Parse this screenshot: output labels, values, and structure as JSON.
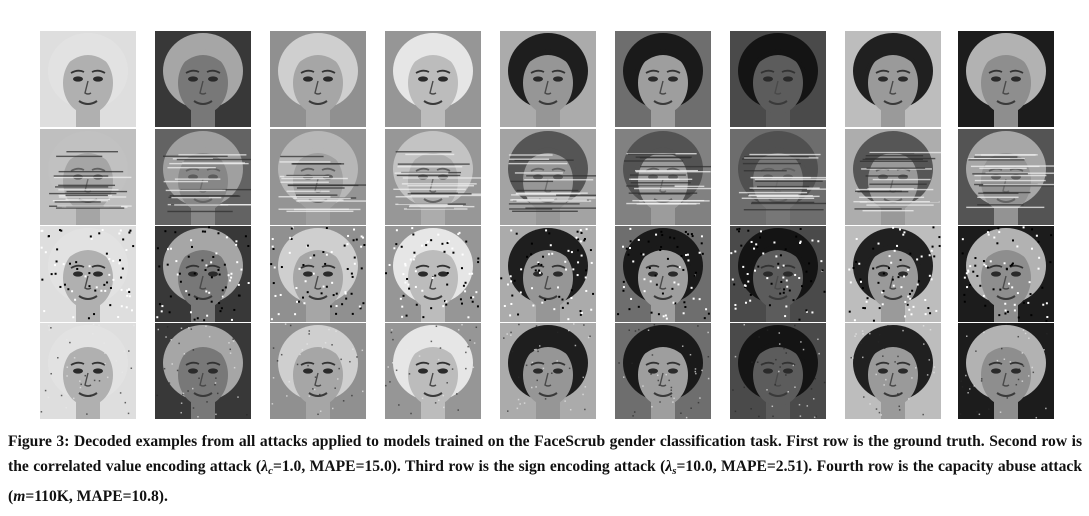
{
  "figure": {
    "caption": {
      "label": "Figure 3:",
      "seg1": " Decoded examples from all attacks applied to models trained on the FaceScrub gender classification task. First row is the ground truth. Second row is the correlated value encoding attack (",
      "lambda_c_symbol": "λ",
      "lambda_c_sub": "c",
      "seg2": "=1.0, MAPE=15.0). Third row is the sign encoding attack (",
      "lambda_s_symbol": "λ",
      "lambda_s_sub": "s",
      "seg3": "=10.0, MAPE=2.51). Fourth row is the capacity abuse attack (",
      "m_symbol": "m",
      "seg4": "=110K, MAPE=10.8)."
    },
    "rows": [
      {
        "name": "ground-truth",
        "noise": "none"
      },
      {
        "name": "correlated-value-encoding",
        "noise": "stripes"
      },
      {
        "name": "sign-encoding",
        "noise": "dots"
      },
      {
        "name": "capacity-abuse",
        "noise": "grain"
      }
    ],
    "faces": [
      {
        "name": "woman-curly-hair",
        "bg": "#dedede",
        "skin": "#b0b0b0",
        "hair": "#e2e2e2",
        "dark_bg": false
      },
      {
        "name": "older-man-grey-hair",
        "bg": "#383838",
        "skin": "#787878",
        "hair": "#a6a6a6",
        "dark_bg": true
      },
      {
        "name": "man-beard-smiling",
        "bg": "#909090",
        "skin": "#a6a6a6",
        "hair": "#cfcfcf",
        "dark_bg": false
      },
      {
        "name": "woman-blonde-smiling",
        "bg": "#969696",
        "skin": "#bcbcbc",
        "hair": "#e6e6e6",
        "dark_bg": false
      },
      {
        "name": "man-dark-hair",
        "bg": "#ababab",
        "skin": "#969696",
        "hair": "#1e1e1e",
        "dark_bg": false
      },
      {
        "name": "man-shaggy-hair",
        "bg": "#6e6e6e",
        "skin": "#9e9e9e",
        "hair": "#1a1a1a",
        "dark_bg": true
      },
      {
        "name": "woman-dark-skin",
        "bg": "#4a4a4a",
        "skin": "#5c5c5c",
        "hair": "#141414",
        "dark_bg": true
      },
      {
        "name": "man-short-dark-hair",
        "bg": "#bdbdbd",
        "skin": "#9a9a9a",
        "hair": "#202020",
        "dark_bg": false
      },
      {
        "name": "older-man-wrinkled",
        "bg": "#1c1c1c",
        "skin": "#8e8e8e",
        "hair": "#b2b2b2",
        "dark_bg": true
      }
    ]
  }
}
